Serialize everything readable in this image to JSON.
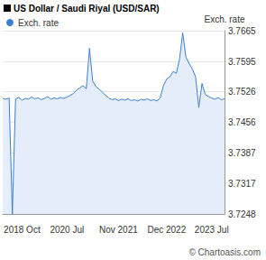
{
  "chart_data": {
    "type": "area",
    "title": "US Dollar / Saudi Riyal (USD/SAR)",
    "y_label": "Exch. rate",
    "annotations": [
      "© Chartoasis.com"
    ],
    "categories": [
      null,
      null,
      null,
      null,
      null,
      null,
      "2018 Oct",
      null,
      null,
      null,
      null,
      null,
      null,
      null,
      null,
      null,
      null,
      null,
      null,
      null,
      "2020 Jul",
      null,
      null,
      null,
      null,
      null,
      null,
      null,
      null,
      null,
      null,
      null,
      null,
      null,
      null,
      null,
      "Nov 2021",
      null,
      null,
      null,
      null,
      null,
      null,
      null,
      null,
      null,
      null,
      null,
      null,
      null,
      null,
      "Dec 2022",
      null,
      null,
      null,
      null,
      null,
      null,
      null,
      null,
      null,
      null,
      null,
      null,
      null,
      "2023 Jul",
      null,
      null,
      null,
      null
    ],
    "series": [
      {
        "name": "Exch. rate",
        "color": "#3a80d2",
        "values": [
          3.7511,
          3.7509,
          3.7512,
          3.7248,
          3.751,
          3.7513,
          3.7507,
          3.7511,
          3.7509,
          3.7514,
          3.751,
          3.7512,
          3.7508,
          3.7511,
          3.7515,
          3.7509,
          3.7512,
          3.751,
          3.7513,
          3.7511,
          3.7514,
          3.7518,
          3.7522,
          3.753,
          3.7535,
          3.754,
          3.7533,
          3.7625,
          3.755,
          3.7538,
          3.7532,
          3.7525,
          3.7518,
          3.7512,
          3.7508,
          3.751,
          3.7506,
          3.7509,
          3.7507,
          3.751,
          3.7506,
          3.7508,
          3.7505,
          3.7509,
          3.7507,
          3.751,
          3.7506,
          3.7508,
          3.7505,
          3.7512,
          3.754,
          3.7555,
          3.756,
          3.7572,
          3.7568,
          3.76,
          3.766,
          3.7605,
          3.759,
          3.7578,
          3.756,
          3.749,
          3.7545,
          3.752,
          3.7515,
          3.7512,
          3.7509,
          3.7513,
          3.7508,
          3.751
        ]
      }
    ],
    "ylim": [
      3.7248,
      3.7665
    ],
    "yticks": [
      3.7248,
      3.7317,
      3.7387,
      3.7456,
      3.7526,
      3.7595,
      3.7665
    ],
    "grid": true,
    "legend": "top-left"
  }
}
